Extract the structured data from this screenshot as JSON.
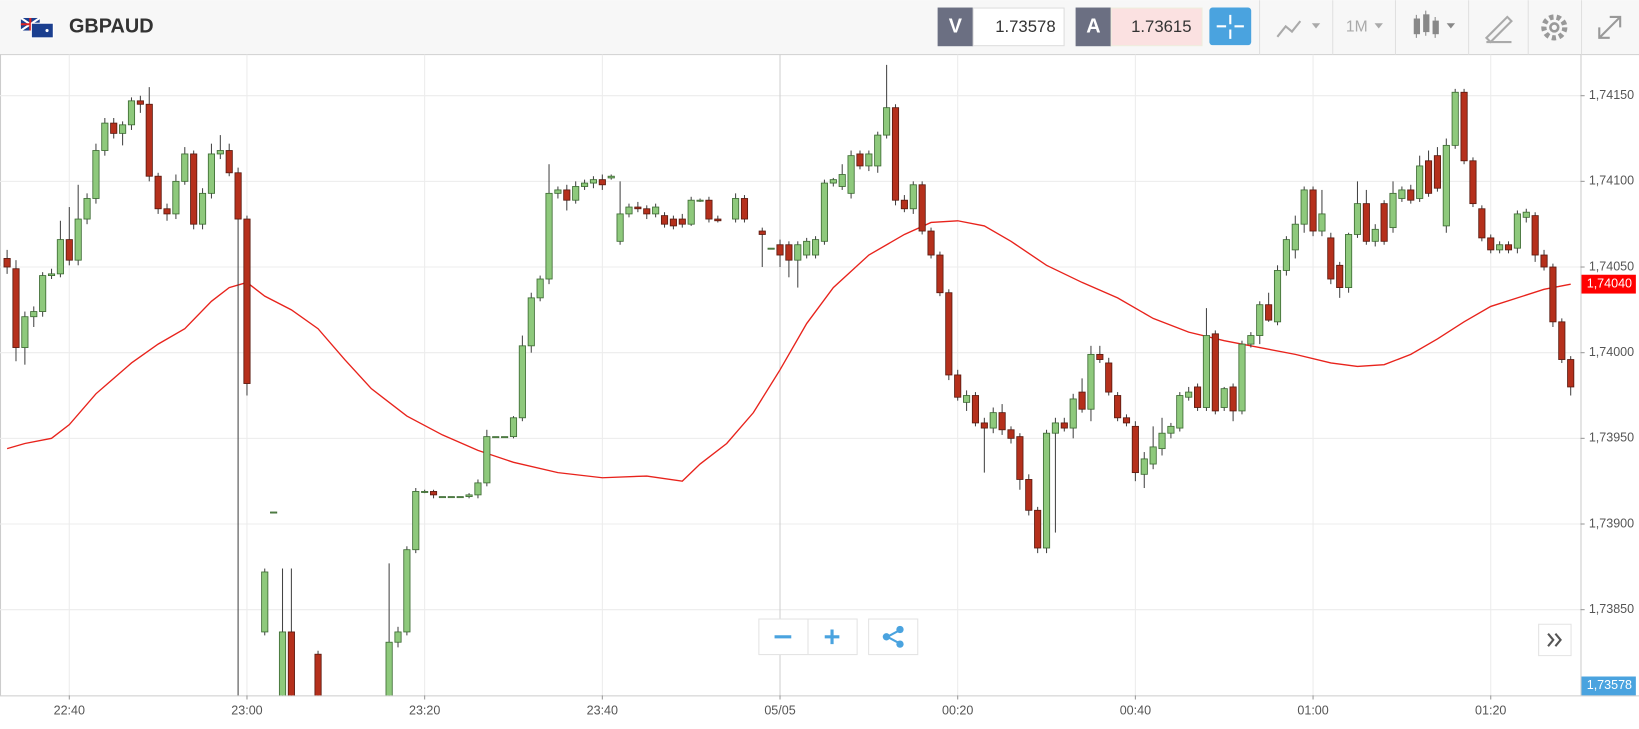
{
  "header": {
    "symbol": "GBPAUD",
    "sell_label": "V",
    "sell_price": "1.73578",
    "buy_label": "A",
    "buy_price": "1.73615",
    "timeframe": "1M"
  },
  "chart_data": {
    "type": "candlestick",
    "x": [
      1353,
      1354,
      1355,
      1356,
      1357,
      1358,
      1359,
      1360,
      1361,
      1362,
      1363,
      1364,
      1365,
      1366,
      1367,
      1368,
      1369,
      1370,
      1371,
      1372,
      1373,
      1374,
      1375,
      1376,
      1377,
      1378,
      1379,
      1380,
      1382,
      1383,
      1384,
      1385,
      1388,
      1396,
      1397,
      1398,
      1399,
      1400,
      1401,
      1402,
      1403,
      1404,
      1405,
      1406,
      1407,
      1408,
      1409,
      1410,
      1411,
      1412,
      1413,
      1414,
      1415,
      1416,
      1417,
      1418,
      1419,
      1420,
      1421,
      1422,
      1423,
      1424,
      1425,
      1426,
      1427,
      1428,
      1429,
      1430,
      1431,
      1432,
      1433,
      1435,
      1436,
      1438,
      1439,
      1440,
      1441,
      1442,
      1443,
      1444,
      1445,
      1446,
      1447,
      1448,
      1449,
      1450,
      1451,
      1452,
      1453,
      1454,
      1455,
      1456,
      1457,
      1458,
      1459,
      1460,
      1461,
      1462,
      1463,
      1464,
      1465,
      1466,
      1467,
      1468,
      1469,
      1470,
      1471,
      1472,
      1473,
      1474,
      1475,
      1476,
      1477,
      1478,
      1479,
      1480,
      1481,
      1482,
      1483,
      1484,
      1485,
      1486,
      1487,
      1488,
      1489,
      1490,
      1491,
      1492,
      1493,
      1494,
      1495,
      1496,
      1497,
      1498,
      1499,
      1500,
      1501,
      1502,
      1503,
      1504,
      1505,
      1506,
      1507,
      1508,
      1509,
      1510,
      1511,
      1512,
      1513,
      1514,
      1515,
      1516,
      1517,
      1518,
      1519,
      1520,
      1521,
      1522,
      1523,
      1524,
      1525,
      1526,
      1527,
      1528,
      1529
    ],
    "ohlc": [
      [
        1.74055,
        1.7406,
        1.74046,
        1.7405
      ],
      [
        1.74049,
        1.74054,
        1.73995,
        1.74003
      ],
      [
        1.74003,
        1.74024,
        1.73993,
        1.74021
      ],
      [
        1.74021,
        1.74027,
        1.74015,
        1.74024
      ],
      [
        1.74024,
        1.74047,
        1.74021,
        1.74045
      ],
      [
        1.74045,
        1.74049,
        1.74043,
        1.74046
      ],
      [
        1.74046,
        1.74077,
        1.74044,
        1.74066
      ],
      [
        1.74066,
        1.74085,
        1.74051,
        1.74054
      ],
      [
        1.74054,
        1.74098,
        1.74051,
        1.74078
      ],
      [
        1.74078,
        1.74093,
        1.74075,
        1.7409
      ],
      [
        1.7409,
        1.74122,
        1.74087,
        1.74118
      ],
      [
        1.74118,
        1.74137,
        1.74115,
        1.74134
      ],
      [
        1.74134,
        1.74137,
        1.74125,
        1.74128
      ],
      [
        1.74128,
        1.74135,
        1.74121,
        1.74133
      ],
      [
        1.74133,
        1.74149,
        1.7413,
        1.74147
      ],
      [
        1.74147,
        1.7415,
        1.7414,
        1.74145
      ],
      [
        1.74145,
        1.74155,
        1.741,
        1.74103
      ],
      [
        1.74103,
        1.74105,
        1.74081,
        1.74084
      ],
      [
        1.74084,
        1.74087,
        1.74077,
        1.74081
      ],
      [
        1.74081,
        1.74104,
        1.74078,
        1.741
      ],
      [
        1.741,
        1.7412,
        1.74098,
        1.74116
      ],
      [
        1.74116,
        1.74118,
        1.74072,
        1.74075
      ],
      [
        1.74075,
        1.74096,
        1.74072,
        1.74093
      ],
      [
        1.74093,
        1.74122,
        1.7409,
        1.74116
      ],
      [
        1.74116,
        1.74127,
        1.74113,
        1.74118
      ],
      [
        1.74118,
        1.74122,
        1.74103,
        1.74105
      ],
      [
        1.74105,
        1.74108,
        1.7379,
        1.74078
      ],
      [
        1.74078,
        1.7408,
        1.73975,
        1.73982
      ],
      [
        1.73837,
        1.73874,
        1.73835,
        1.73872
      ],
      [
        1.73907,
        1.73907,
        1.73907,
        1.73907
      ],
      [
        1.7379,
        1.73874,
        1.73785,
        1.73837
      ],
      [
        1.73837,
        1.73874,
        1.73785,
        1.7379
      ],
      [
        1.73824,
        1.73826,
        1.73785,
        1.7379
      ],
      [
        1.7379,
        1.73877,
        1.73785,
        1.73831
      ],
      [
        1.73831,
        1.7384,
        1.73828,
        1.73837
      ],
      [
        1.73837,
        1.73887,
        1.73835,
        1.73885
      ],
      [
        1.73885,
        1.73921,
        1.73883,
        1.73919
      ],
      [
        1.73919,
        1.7392,
        1.73918,
        1.73919
      ],
      [
        1.73919,
        1.7392,
        1.73915,
        1.73917
      ],
      [
        1.73916,
        1.73916,
        1.73916,
        1.73916
      ],
      [
        1.73916,
        1.73916,
        1.73916,
        1.73916
      ],
      [
        1.73916,
        1.73916,
        1.73916,
        1.73916
      ],
      [
        1.73916,
        1.73918,
        1.73915,
        1.73917
      ],
      [
        1.73917,
        1.73926,
        1.73915,
        1.73924
      ],
      [
        1.73924,
        1.73955,
        1.73922,
        1.73951
      ],
      [
        1.73951,
        1.73951,
        1.73951,
        1.73951
      ],
      [
        1.73951,
        1.73951,
        1.73951,
        1.73951
      ],
      [
        1.73951,
        1.73963,
        1.7395,
        1.73962
      ],
      [
        1.73962,
        1.7401,
        1.7396,
        1.74004
      ],
      [
        1.74004,
        1.74035,
        1.74,
        1.74032
      ],
      [
        1.74032,
        1.74045,
        1.7403,
        1.74043
      ],
      [
        1.74043,
        1.7411,
        1.7404,
        1.74093
      ],
      [
        1.74093,
        1.74097,
        1.7409,
        1.74095
      ],
      [
        1.74095,
        1.74098,
        1.74083,
        1.74089
      ],
      [
        1.74089,
        1.741,
        1.74087,
        1.74097
      ],
      [
        1.74097,
        1.74101,
        1.74095,
        1.74099
      ],
      [
        1.74099,
        1.74103,
        1.74096,
        1.74101
      ],
      [
        1.74101,
        1.74104,
        1.74095,
        1.74098
      ],
      [
        1.74102,
        1.74104,
        1.74101,
        1.74103
      ],
      [
        1.74065,
        1.741,
        1.74063,
        1.74081
      ],
      [
        1.74081,
        1.74087,
        1.74079,
        1.74085
      ],
      [
        1.74085,
        1.74088,
        1.74082,
        1.74084
      ],
      [
        1.74084,
        1.74086,
        1.74078,
        1.74081
      ],
      [
        1.74081,
        1.74087,
        1.74079,
        1.74085
      ],
      [
        1.7408,
        1.74082,
        1.74073,
        1.74075
      ],
      [
        1.74078,
        1.7408,
        1.74072,
        1.74074
      ],
      [
        1.74078,
        1.74081,
        1.74073,
        1.74075
      ],
      [
        1.74075,
        1.74091,
        1.74074,
        1.74089
      ],
      [
        1.74089,
        1.7409,
        1.74088,
        1.74089
      ],
      [
        1.74089,
        1.74091,
        1.74076,
        1.74078
      ],
      [
        1.74078,
        1.7408,
        1.74076,
        1.74077
      ],
      [
        1.74078,
        1.74093,
        1.74076,
        1.7409
      ],
      [
        1.7409,
        1.74092,
        1.74076,
        1.74078
      ],
      [
        1.74071,
        1.74073,
        1.7405,
        1.74069
      ],
      [
        1.74061,
        1.74061,
        1.74061,
        1.74061
      ],
      [
        1.74063,
        1.74066,
        1.7405,
        1.74057
      ],
      [
        1.74063,
        1.74065,
        1.74044,
        1.74054
      ],
      [
        1.74054,
        1.74065,
        1.74038,
        1.74063
      ],
      [
        1.74057,
        1.74067,
        1.74055,
        1.74065
      ],
      [
        1.74057,
        1.74068,
        1.74055,
        1.74066
      ],
      [
        1.74065,
        1.74101,
        1.74063,
        1.74099
      ],
      [
        1.74099,
        1.74102,
        1.74097,
        1.74101
      ],
      [
        1.74097,
        1.7411,
        1.74095,
        1.74104
      ],
      [
        1.74093,
        1.74118,
        1.7409,
        1.74115
      ],
      [
        1.74116,
        1.74118,
        1.74107,
        1.74109
      ],
      [
        1.74109,
        1.74118,
        1.74106,
        1.74116
      ],
      [
        1.74109,
        1.74129,
        1.74105,
        1.74127
      ],
      [
        1.74127,
        1.74168,
        1.74125,
        1.74143
      ],
      [
        1.74143,
        1.74145,
        1.74086,
        1.74089
      ],
      [
        1.74089,
        1.74092,
        1.74082,
        1.74084
      ],
      [
        1.74084,
        1.741,
        1.74081,
        1.74098
      ],
      [
        1.74098,
        1.741,
        1.74069,
        1.74071
      ],
      [
        1.74071,
        1.74073,
        1.74055,
        1.74057
      ],
      [
        1.74057,
        1.74059,
        1.74033,
        1.74035
      ],
      [
        1.74035,
        1.74037,
        1.73984,
        1.73987
      ],
      [
        1.73987,
        1.7399,
        1.73972,
        1.73974
      ],
      [
        1.73971,
        1.73978,
        1.73966,
        1.73975
      ],
      [
        1.73975,
        1.73977,
        1.73957,
        1.73959
      ],
      [
        1.73959,
        1.73962,
        1.7393,
        1.73956
      ],
      [
        1.73956,
        1.73968,
        1.73953,
        1.73965
      ],
      [
        1.73965,
        1.7397,
        1.73952,
        1.73955
      ],
      [
        1.73955,
        1.73957,
        1.73947,
        1.7395
      ],
      [
        1.73951,
        1.73953,
        1.7392,
        1.73926
      ],
      [
        1.73926,
        1.73929,
        1.73905,
        1.73908
      ],
      [
        1.73908,
        1.7391,
        1.73883,
        1.73886
      ],
      [
        1.73886,
        1.73955,
        1.73883,
        1.73953
      ],
      [
        1.73953,
        1.73962,
        1.73895,
        1.73959
      ],
      [
        1.73959,
        1.73962,
        1.73954,
        1.73956
      ],
      [
        1.73956,
        1.73976,
        1.7395,
        1.73973
      ],
      [
        1.73977,
        1.73985,
        1.73965,
        1.73967
      ],
      [
        1.73967,
        1.74004,
        1.7396,
        1.73999
      ],
      [
        1.73999,
        1.74004,
        1.73994,
        1.73996
      ],
      [
        1.73994,
        1.73997,
        1.73975,
        1.73977
      ],
      [
        1.73975,
        1.73977,
        1.7396,
        1.73962
      ],
      [
        1.73962,
        1.73964,
        1.73957,
        1.73959
      ],
      [
        1.73957,
        1.7396,
        1.73925,
        1.7393
      ],
      [
        1.73929,
        1.73942,
        1.73921,
        1.73938
      ],
      [
        1.73935,
        1.73957,
        1.73932,
        1.73945
      ],
      [
        1.73944,
        1.73962,
        1.7394,
        1.73953
      ],
      [
        1.73953,
        1.73959,
        1.7395,
        1.73957
      ],
      [
        1.73956,
        1.73977,
        1.73954,
        1.73975
      ],
      [
        1.73974,
        1.7398,
        1.73972,
        1.73977
      ],
      [
        1.7398,
        1.73982,
        1.73966,
        1.73968
      ],
      [
        1.73968,
        1.74026,
        1.73966,
        1.7401
      ],
      [
        1.74011,
        1.74013,
        1.73964,
        1.73966
      ],
      [
        1.73968,
        1.7398,
        1.73966,
        1.73979
      ],
      [
        1.7398,
        1.73982,
        1.7396,
        1.73966
      ],
      [
        1.73966,
        1.74007,
        1.73964,
        1.74005
      ],
      [
        1.74005,
        1.74012,
        1.74003,
        1.7401
      ],
      [
        1.7401,
        1.7403,
        1.74005,
        1.74028
      ],
      [
        1.74028,
        1.74035,
        1.74018,
        1.74019
      ],
      [
        1.74018,
        1.74051,
        1.74016,
        1.74048
      ],
      [
        1.74048,
        1.74068,
        1.74045,
        1.74066
      ],
      [
        1.7406,
        1.7408,
        1.74055,
        1.74075
      ],
      [
        1.74075,
        1.74097,
        1.7407,
        1.74095
      ],
      [
        1.74095,
        1.74097,
        1.74068,
        1.74071
      ],
      [
        1.74071,
        1.74095,
        1.74068,
        1.74081
      ],
      [
        1.74067,
        1.7407,
        1.7404,
        1.74043
      ],
      [
        1.74051,
        1.74053,
        1.74032,
        1.74038
      ],
      [
        1.74038,
        1.7407,
        1.74035,
        1.74069
      ],
      [
        1.74069,
        1.741,
        1.74067,
        1.74087
      ],
      [
        1.74087,
        1.74095,
        1.74063,
        1.74065
      ],
      [
        1.74065,
        1.74075,
        1.74062,
        1.74072
      ],
      [
        1.74087,
        1.74089,
        1.74063,
        1.74065
      ],
      [
        1.74073,
        1.741,
        1.7407,
        1.74093
      ],
      [
        1.7409,
        1.74097,
        1.74088,
        1.74095
      ],
      [
        1.74095,
        1.74098,
        1.74087,
        1.74089
      ],
      [
        1.7409,
        1.74115,
        1.74088,
        1.74109
      ],
      [
        1.74112,
        1.74118,
        1.74091,
        1.74093
      ],
      [
        1.74115,
        1.7412,
        1.74094,
        1.74096
      ],
      [
        1.74074,
        1.74125,
        1.7407,
        1.74121
      ],
      [
        1.74121,
        1.74154,
        1.74119,
        1.74152
      ],
      [
        1.74152,
        1.74154,
        1.7411,
        1.74112
      ],
      [
        1.74112,
        1.74114,
        1.74085,
        1.74087
      ],
      [
        1.74084,
        1.74086,
        1.74065,
        1.74067
      ],
      [
        1.74067,
        1.74069,
        1.74058,
        1.7406
      ],
      [
        1.7406,
        1.74065,
        1.74058,
        1.74063
      ],
      [
        1.74063,
        1.74065,
        1.74058,
        1.7406
      ],
      [
        1.74061,
        1.74083,
        1.74058,
        1.74081
      ],
      [
        1.74079,
        1.74084,
        1.74076,
        1.74082
      ],
      [
        1.7408,
        1.74082,
        1.74053,
        1.74057
      ],
      [
        1.74057,
        1.7406,
        1.74048,
        1.7405
      ],
      [
        1.7405,
        1.74052,
        1.74015,
        1.74018
      ],
      [
        1.74018,
        1.7402,
        1.73994,
        1.73996
      ],
      [
        1.73996,
        1.73998,
        1.73975,
        1.7398
      ]
    ],
    "up_color": "#8ec97c",
    "down_color": "#b5301c",
    "moving_average": {
      "color": "#e8231c",
      "x": [
        1353,
        1355,
        1358,
        1360,
        1363,
        1367,
        1370,
        1373,
        1376,
        1378,
        1380,
        1382,
        1385,
        1388,
        1391,
        1394,
        1398,
        1402,
        1406,
        1410,
        1415,
        1420,
        1425,
        1429,
        1431,
        1434,
        1437,
        1440,
        1443,
        1446,
        1450,
        1454,
        1457,
        1460,
        1463,
        1466,
        1470,
        1474,
        1478,
        1482,
        1486,
        1490,
        1494,
        1498,
        1502,
        1505,
        1508,
        1511,
        1514,
        1517,
        1520,
        1523,
        1526,
        1529
      ],
      "values": [
        1.73944,
        1.73947,
        1.7395,
        1.73958,
        1.73976,
        1.73994,
        1.74005,
        1.74014,
        1.7403,
        1.74038,
        1.74041,
        1.74033,
        1.74025,
        1.74014,
        1.73996,
        1.73979,
        1.73963,
        1.73952,
        1.73943,
        1.73936,
        1.7393,
        1.73927,
        1.73928,
        1.73925,
        1.73935,
        1.73947,
        1.73965,
        1.7399,
        1.74017,
        1.74038,
        1.74057,
        1.74069,
        1.74076,
        1.74077,
        1.74074,
        1.74065,
        1.74051,
        1.74041,
        1.74032,
        1.7402,
        1.74012,
        1.74007,
        1.74003,
        1.73999,
        1.73994,
        1.73992,
        1.73993,
        1.73999,
        1.74008,
        1.74018,
        1.74027,
        1.74032,
        1.74037,
        1.7404
      ]
    },
    "xlim": [
      1352.2,
      1530.1
    ],
    "xticks": [
      {
        "value": 1360,
        "label": "22:40"
      },
      {
        "value": 1380,
        "label": "23:00"
      },
      {
        "value": 1400,
        "label": "23:20"
      },
      {
        "value": 1420,
        "label": "23:40"
      },
      {
        "value": 1440,
        "label": "05/05"
      },
      {
        "value": 1460,
        "label": "00:20"
      },
      {
        "value": 1480,
        "label": "00:40"
      },
      {
        "value": 1500,
        "label": "01:00"
      },
      {
        "value": 1520,
        "label": "01:20"
      }
    ],
    "ylim": [
      1.738,
      1.74174
    ],
    "yticks": [
      {
        "value": 1.7385,
        "label": "1,73850"
      },
      {
        "value": 1.739,
        "label": "1,73900"
      },
      {
        "value": 1.7395,
        "label": "1,73950"
      },
      {
        "value": 1.74,
        "label": "1,74000"
      },
      {
        "value": 1.7405,
        "label": "1,74050"
      },
      {
        "value": 1.741,
        "label": "1,74100"
      },
      {
        "value": 1.7415,
        "label": "1,74150"
      }
    ],
    "grid": true,
    "last_price": {
      "value": 1.7404,
      "label": "1,74040",
      "color": "#ff0000"
    },
    "bid_marker": {
      "value": 1.73578,
      "label": "1,73578",
      "color": "#4aa3df"
    }
  }
}
